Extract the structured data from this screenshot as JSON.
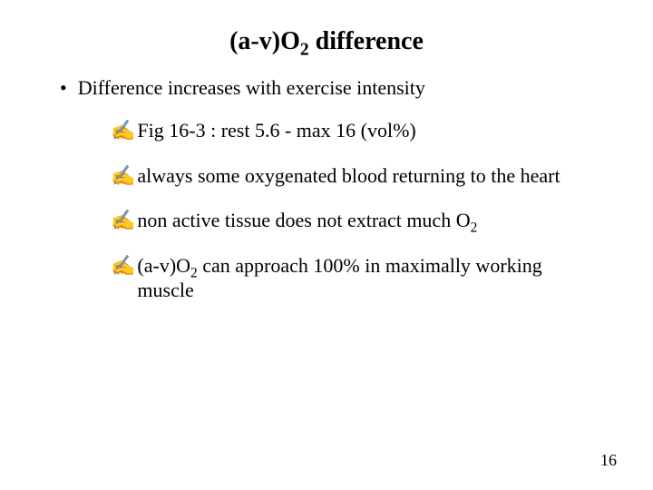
{
  "title": {
    "pre": "(a-v)O",
    "sub": "2",
    "post": " difference"
  },
  "bullet1": {
    "marker": "•",
    "text": "Difference increases with exercise intensity"
  },
  "subbullets": [
    {
      "marker": "✍",
      "parts": [
        {
          "t": "Fig 16-3 : rest 5.6 - max 16 (vol%)"
        }
      ]
    },
    {
      "marker": "✍",
      "parts": [
        {
          "t": "always some oxygenated blood returning to the heart"
        }
      ]
    },
    {
      "marker": "✍",
      "parts": [
        {
          "t": "non active tissue does not extract much O"
        },
        {
          "t": "2",
          "sub": true
        }
      ]
    },
    {
      "marker": "✍",
      "parts": [
        {
          "t": "(a-v)O"
        },
        {
          "t": "2",
          "sub": true
        },
        {
          "t": " can approach 100% in maximally working muscle"
        }
      ]
    }
  ],
  "pageNumber": "16",
  "colors": {
    "background": "#ffffff",
    "text": "#000000"
  },
  "fonts": {
    "family": "Times New Roman",
    "title_size": 28,
    "body_size": 22,
    "pagenum_size": 18
  }
}
